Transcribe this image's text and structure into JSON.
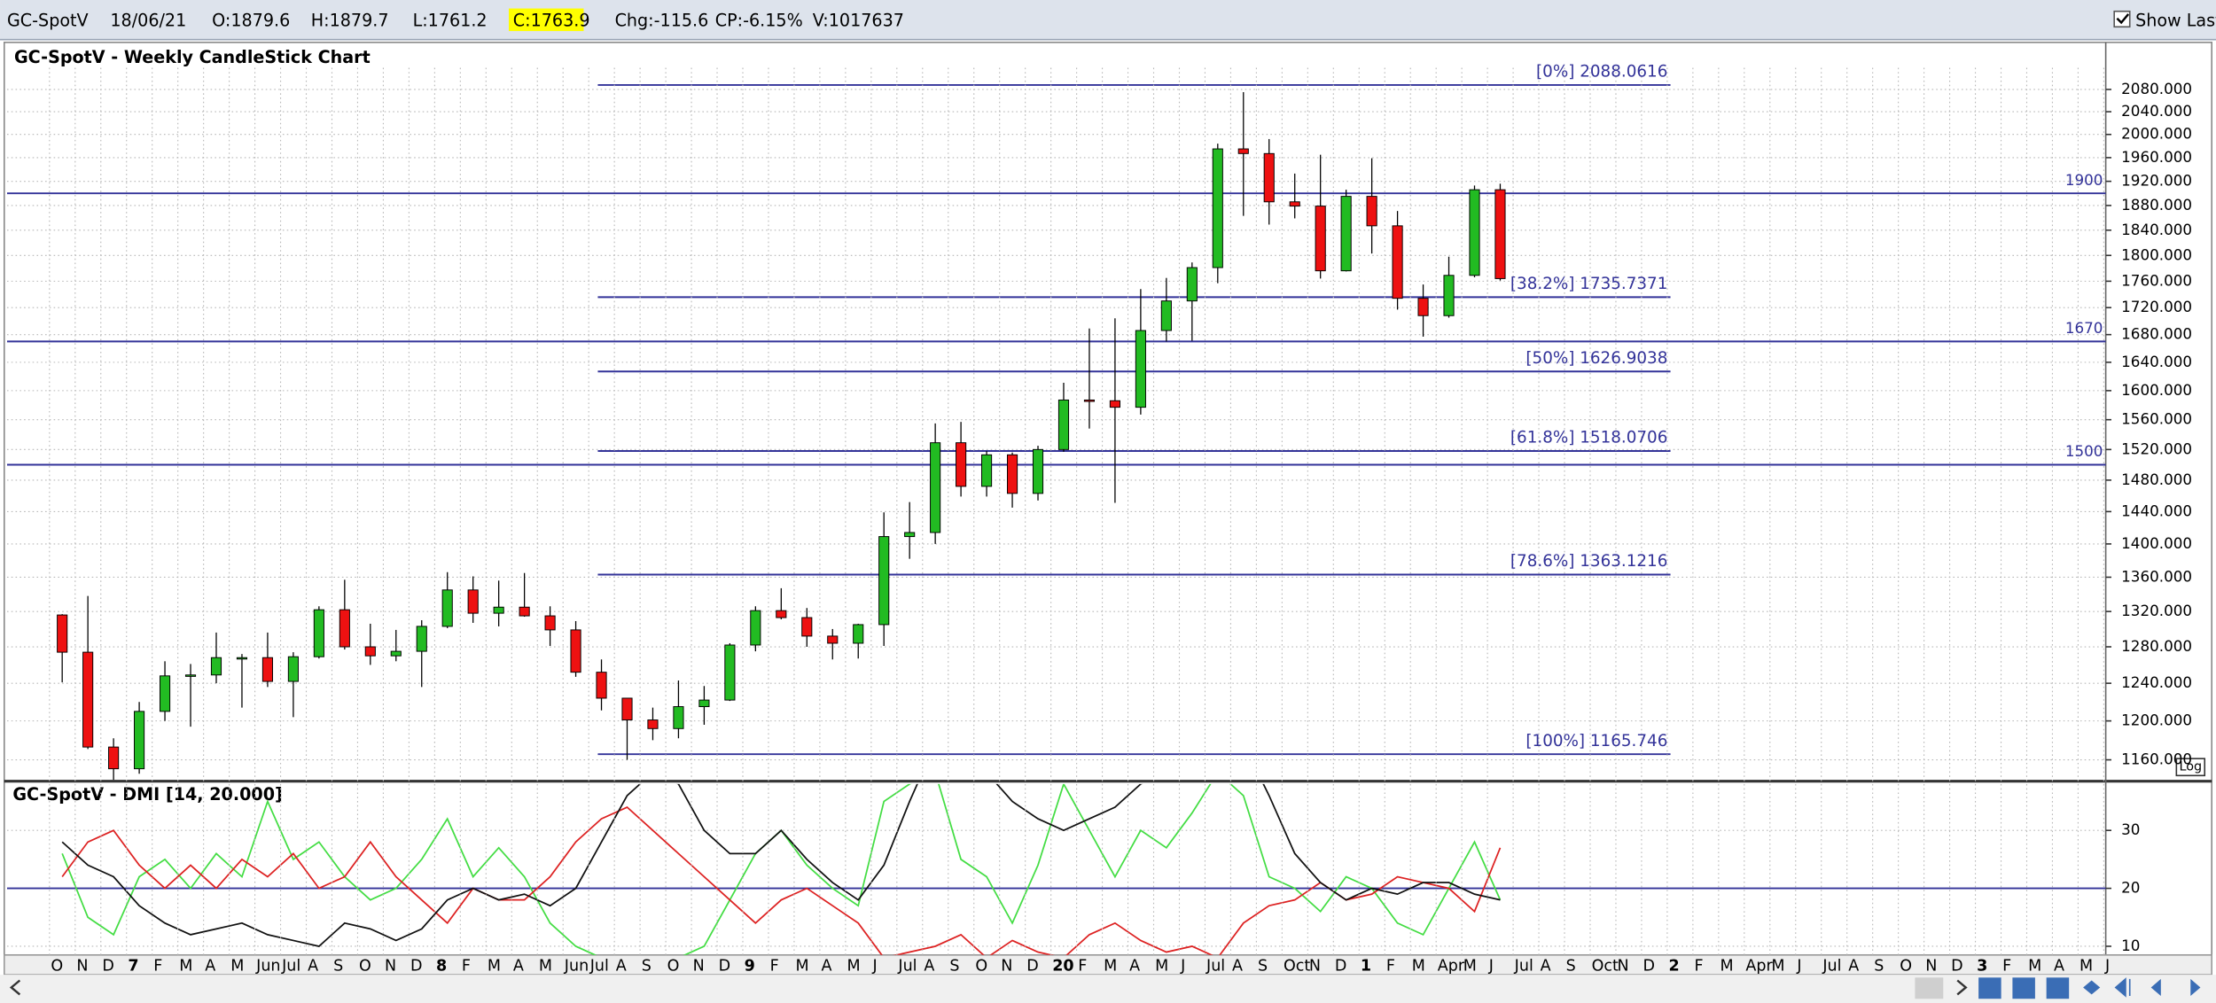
{
  "header": {
    "symbol": "GC-SpotV",
    "date": "18/06/21",
    "open": "O:1879.6",
    "high": "H:1879.7",
    "low": "L:1761.2",
    "close": "C:1763.9",
    "change": "Chg:-115.6",
    "change_percent": "CP:-6.15%",
    "volume": "V:1017637",
    "show_last": "Show Last"
  },
  "chart_data": [
    {
      "type": "candlestick",
      "title": "GC-SpotV - Weekly CandleStick Chart",
      "log_scale": true,
      "log_button": "Log",
      "grid": true,
      "up_color": "#22bb22",
      "down_color": "#ee1111",
      "x_axis_labels": [
        "O",
        "N",
        "D",
        "7",
        "F",
        "M",
        "A",
        "M",
        "Jun",
        "Jul",
        "A",
        "S",
        "O",
        "N",
        "D",
        "8",
        "F",
        "M",
        "A",
        "M",
        "Jun",
        "Jul",
        "A",
        "S",
        "O",
        "N",
        "D",
        "9",
        "F",
        "M",
        "A",
        "M",
        "J",
        "Jul",
        "A",
        "S",
        "O",
        "N",
        "D",
        "20",
        "F",
        "M",
        "A",
        "M",
        "J",
        "Jul",
        "A",
        "S",
        "Oct",
        "N",
        "D",
        "1",
        "F",
        "M",
        "Apr",
        "M",
        "J",
        "Jul",
        "A",
        "S",
        "Oct",
        "N",
        "D",
        "2",
        "F",
        "M",
        "Apr",
        "M",
        "J",
        "Jul",
        "A",
        "S",
        "O",
        "N",
        "D",
        "3",
        "F",
        "M",
        "A",
        "M",
        "J"
      ],
      "open": [
        1316,
        1274,
        1173,
        1151,
        1210,
        1248,
        1249,
        1268,
        1268,
        1242,
        1269,
        1322,
        1280,
        1270,
        1275,
        1303,
        1345,
        1318,
        1325,
        1315,
        1299,
        1252,
        1224,
        1201,
        1192,
        1215,
        1222,
        1282,
        1321,
        1313,
        1292,
        1284,
        1305,
        1409,
        1414,
        1529,
        1472,
        1513,
        1463,
        1520,
        1587,
        1586,
        1577,
        1686,
        1730,
        1781,
        1975,
        1967,
        1886,
        1879,
        1776,
        1895,
        1847,
        1734,
        1708,
        1769,
        1906
      ],
      "high": [
        1317,
        1338,
        1182,
        1220,
        1264,
        1261,
        1296,
        1272,
        1296,
        1274,
        1326,
        1357,
        1306,
        1299,
        1310,
        1366,
        1361,
        1356,
        1365,
        1326,
        1309,
        1266,
        1224,
        1214,
        1243,
        1237,
        1284,
        1326,
        1347,
        1324,
        1300,
        1306,
        1439,
        1452,
        1555,
        1557,
        1518,
        1516,
        1525,
        1611,
        1689,
        1704,
        1748,
        1765,
        1789,
        1984,
        2075,
        1992,
        1933,
        1965,
        1906,
        1959,
        1871,
        1755,
        1798,
        1913,
        1916
      ],
      "low": [
        1241,
        1171,
        1124,
        1146,
        1200,
        1194,
        1240,
        1214,
        1236,
        1204,
        1267,
        1277,
        1260,
        1264,
        1236,
        1301,
        1307,
        1303,
        1314,
        1281,
        1247,
        1211,
        1160,
        1180,
        1182,
        1196,
        1221,
        1275,
        1311,
        1280,
        1266,
        1267,
        1281,
        1382,
        1400,
        1459,
        1459,
        1445,
        1454,
        1517,
        1548,
        1451,
        1567,
        1670,
        1671,
        1757,
        1863,
        1849,
        1859,
        1764,
        1775,
        1803,
        1717,
        1677,
        1705,
        1766,
        1761
      ],
      "close": [
        1274,
        1173,
        1151,
        1210,
        1248,
        1249,
        1268,
        1268,
        1242,
        1269,
        1322,
        1280,
        1270,
        1275,
        1303,
        1345,
        1318,
        1325,
        1315,
        1299,
        1252,
        1224,
        1201,
        1192,
        1215,
        1222,
        1282,
        1321,
        1313,
        1292,
        1284,
        1305,
        1409,
        1414,
        1529,
        1472,
        1513,
        1463,
        1520,
        1587,
        1586,
        1577,
        1686,
        1730,
        1781,
        1975,
        1967,
        1886,
        1879,
        1776,
        1895,
        1847,
        1734,
        1708,
        1769,
        1906,
        1764
      ],
      "ylim": [
        1140,
        2167
      ],
      "yticks": [
        {
          "value": 1160,
          "label": "1160.000"
        },
        {
          "value": 1200,
          "label": "1200.000"
        },
        {
          "value": 1240,
          "label": "1240.000"
        },
        {
          "value": 1280,
          "label": "1280.000"
        },
        {
          "value": 1320,
          "label": "1320.000"
        },
        {
          "value": 1360,
          "label": "1360.000"
        },
        {
          "value": 1400,
          "label": "1400.000"
        },
        {
          "value": 1440,
          "label": "1440.000"
        },
        {
          "value": 1480,
          "label": "1480.000"
        },
        {
          "value": 1520,
          "label": "1520.000"
        },
        {
          "value": 1560,
          "label": "1560.000"
        },
        {
          "value": 1600,
          "label": "1600.000"
        },
        {
          "value": 1640,
          "label": "1640.000"
        },
        {
          "value": 1680,
          "label": "1680.000"
        },
        {
          "value": 1720,
          "label": "1720.000"
        },
        {
          "value": 1760,
          "label": "1760.000"
        },
        {
          "value": 1800,
          "label": "1800.000"
        },
        {
          "value": 1840,
          "label": "1840.000"
        },
        {
          "value": 1880,
          "label": "1880.000"
        },
        {
          "value": 1920,
          "label": "1920.000"
        },
        {
          "value": 1960,
          "label": "1960.000"
        },
        {
          "value": 2000,
          "label": "2000.000"
        },
        {
          "value": 2040,
          "label": "2040.000"
        },
        {
          "value": 2080,
          "label": "2080.000"
        }
      ],
      "hlines": [
        1900,
        1670,
        1500
      ],
      "fib_levels": [
        {
          "value": 2088.0616,
          "label": "[0%] 2088.0616"
        },
        {
          "value": 1735.7371,
          "label": "[38.2%] 1735.7371"
        },
        {
          "value": 1626.9038,
          "label": "[50%] 1626.9038"
        },
        {
          "value": 1518.0706,
          "label": "[61.8%] 1518.0706"
        },
        {
          "value": 1363.1216,
          "label": "[78.6%] 1363.1216"
        },
        {
          "value": 1165.746,
          "label": "[100%] 1165.746"
        }
      ],
      "line_color": "#333399"
    },
    {
      "type": "line",
      "title": "GC-SpotV - DMI [14, 20.000]",
      "ylim": [
        8.5,
        38
      ],
      "yticks": [
        10,
        20,
        30
      ],
      "grid": true,
      "threshold": 20,
      "threshold_color": "#333399",
      "series": [
        {
          "color": "#44dd44",
          "values": [
            26,
            15,
            12,
            22,
            25,
            20,
            26,
            22,
            35,
            25,
            28,
            22,
            18,
            20,
            25,
            32,
            22,
            27,
            22,
            14,
            10,
            8,
            5,
            6,
            8,
            10,
            18,
            26,
            30,
            24,
            20,
            17,
            35,
            38,
            40,
            25,
            22,
            14,
            24,
            38,
            30,
            22,
            30,
            27,
            33,
            40,
            36,
            22,
            20,
            16,
            22,
            20,
            14,
            12,
            20,
            28,
            18
          ]
        },
        {
          "color": "#dd2222",
          "values": [
            22,
            28,
            30,
            24,
            20,
            24,
            20,
            25,
            22,
            26,
            20,
            22,
            28,
            22,
            18,
            14,
            20,
            18,
            18,
            22,
            28,
            32,
            34,
            30,
            26,
            22,
            18,
            14,
            18,
            20,
            17,
            14,
            8,
            9,
            10,
            12,
            8,
            11,
            9,
            8,
            12,
            14,
            11,
            9,
            10,
            8,
            14,
            17,
            18,
            21,
            18,
            19,
            22,
            21,
            20,
            16,
            27
          ]
        },
        {
          "color": "#111111",
          "values": [
            28,
            24,
            22,
            17,
            14,
            12,
            13,
            14,
            12,
            11,
            10,
            14,
            13,
            11,
            13,
            18,
            20,
            18,
            19,
            17,
            20,
            28,
            36,
            40,
            38,
            30,
            26,
            26,
            30,
            25,
            21,
            18,
            24,
            35,
            45,
            45,
            40,
            35,
            32,
            30,
            32,
            34,
            38,
            40,
            42,
            45,
            45,
            36,
            26,
            21,
            18,
            20,
            19,
            21,
            21,
            19,
            18
          ]
        }
      ]
    }
  ]
}
